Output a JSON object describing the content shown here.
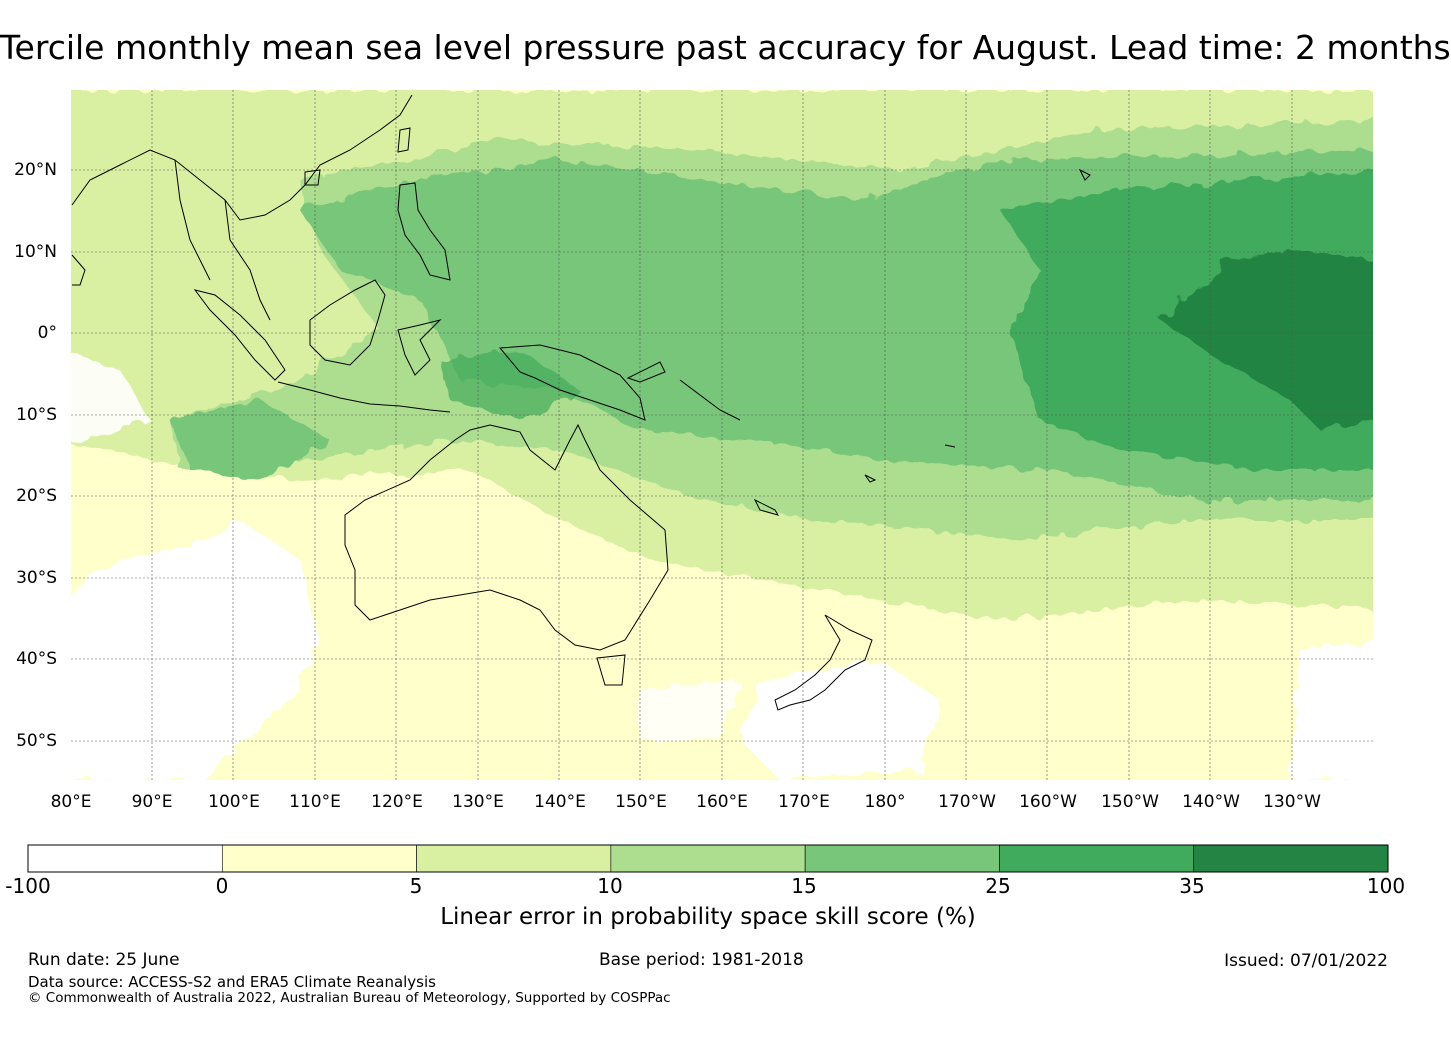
{
  "title": "Tercile monthly mean sea level pressure past accuracy for August. Lead time: 2 months",
  "map": {
    "lat_labels": [
      "20°N",
      "10°N",
      "0°",
      "10°S",
      "20°S",
      "30°S",
      "40°S",
      "50°S"
    ],
    "lon_labels": [
      "80°E",
      "90°E",
      "100°E",
      "110°E",
      "120°E",
      "130°E",
      "140°E",
      "150°E",
      "160°E",
      "170°E",
      "180°",
      "170°W",
      "160°W",
      "150°W",
      "140°W",
      "130°W"
    ],
    "lat_values": [
      20,
      10,
      0,
      -10,
      -20,
      -30,
      -40,
      -50
    ],
    "lon_values": [
      80,
      90,
      100,
      110,
      120,
      130,
      140,
      150,
      160,
      170,
      180,
      190,
      200,
      210,
      220,
      230
    ],
    "extent": {
      "lon_min": 80,
      "lon_max": 240,
      "lat_min": -55,
      "lat_max": 30
    }
  },
  "colorbar": {
    "title": "Linear error in probability space skill score (%)",
    "ticks": [
      "-100",
      "0",
      "5",
      "10",
      "15",
      "25",
      "35",
      "100"
    ],
    "colors": [
      "#ffffff",
      "#ffffcc",
      "#d9f0a3",
      "#addd8e",
      "#78c679",
      "#41ab5d",
      "#238443"
    ]
  },
  "footer": {
    "run_date": "Run date: 25 June",
    "base_period": "Base period: 1981-2018",
    "issued": "Issued: 07/01/2022",
    "data_source": "Data source: ACCESS-S2 and ERA5 Climate Reanalysis",
    "copyright": "© Commonwealth of Australia 2022, Australian Bureau of Meteorology, Supported by COSPPac"
  }
}
